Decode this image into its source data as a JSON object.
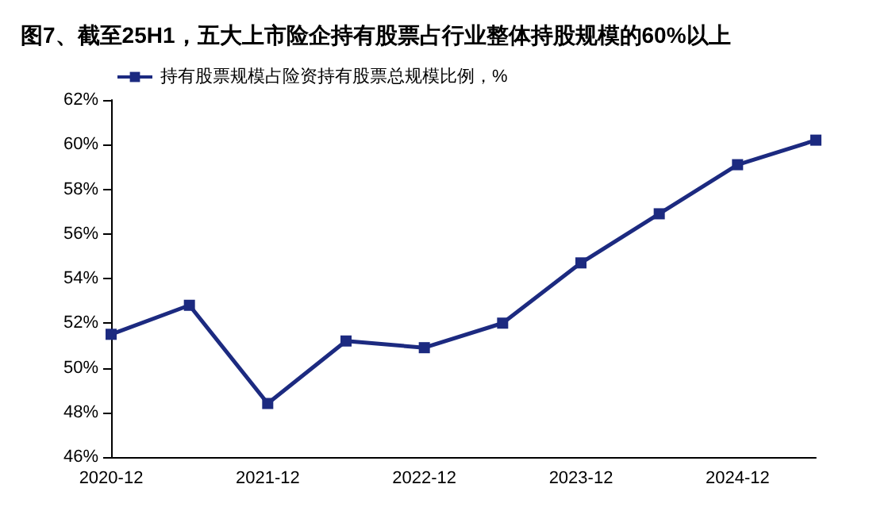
{
  "chart_data": {
    "type": "line",
    "title": "图7、截至25H1，五大上市险企持有股票占行业整体持股规模的60%以上",
    "categories": [
      "2020-12",
      null,
      "2021-12",
      null,
      "2022-12",
      null,
      "2023-12",
      null,
      "2024-12",
      null
    ],
    "series": [
      {
        "name": "持有股票规模占险资持有股票总规模比例，%",
        "color": "#1c2a80",
        "values": [
          51.5,
          52.8,
          48.4,
          51.2,
          50.9,
          52.0,
          54.7,
          56.9,
          59.1,
          60.2
        ]
      }
    ],
    "ylim": [
      46,
      62
    ],
    "yticks": [
      {
        "value": 46,
        "label": "46%"
      },
      {
        "value": 48,
        "label": "48%"
      },
      {
        "value": 50,
        "label": "50%"
      },
      {
        "value": 52,
        "label": "52%"
      },
      {
        "value": 54,
        "label": "54%"
      },
      {
        "value": 56,
        "label": "56%"
      },
      {
        "value": 58,
        "label": "58%"
      },
      {
        "value": 60,
        "label": "60%"
      },
      {
        "value": 62,
        "label": "62%"
      }
    ],
    "grid": false,
    "legend": "top left",
    "marker": "square",
    "line_style": "solid"
  }
}
